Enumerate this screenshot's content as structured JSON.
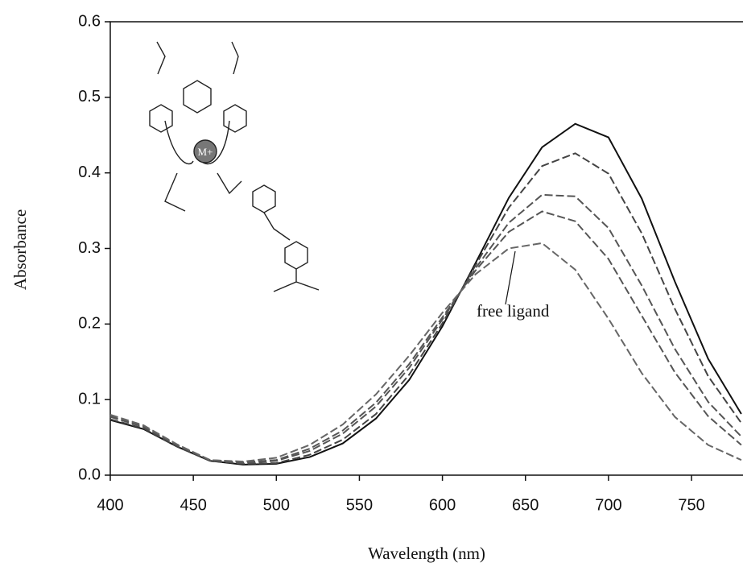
{
  "chart_data": {
    "type": "line",
    "xlabel": "Wavelength (nm)",
    "ylabel": "Absorbance",
    "annotation": "free ligand",
    "structure_label": "M+",
    "x": [
      400,
      420,
      440,
      460,
      480,
      500,
      520,
      540,
      560,
      580,
      600,
      620,
      640,
      660,
      680,
      700,
      720,
      740,
      760,
      780
    ],
    "series": [
      {
        "color": "#111111",
        "dash": false,
        "values": [
          0.073,
          0.061,
          0.038,
          0.019,
          0.014,
          0.015,
          0.024,
          0.042,
          0.075,
          0.126,
          0.197,
          0.281,
          0.367,
          0.434,
          0.465,
          0.447,
          0.366,
          0.256,
          0.154,
          0.081
        ]
      },
      {
        "color": "#444444",
        "dash": true,
        "values": [
          0.074,
          0.062,
          0.038,
          0.019,
          0.015,
          0.016,
          0.027,
          0.047,
          0.081,
          0.133,
          0.201,
          0.278,
          0.354,
          0.409,
          0.426,
          0.399,
          0.32,
          0.22,
          0.131,
          0.069
        ]
      },
      {
        "color": "#555555",
        "dash": true,
        "values": [
          0.077,
          0.064,
          0.04,
          0.02,
          0.016,
          0.019,
          0.032,
          0.055,
          0.091,
          0.142,
          0.206,
          0.274,
          0.334,
          0.371,
          0.369,
          0.327,
          0.251,
          0.167,
          0.097,
          0.051
        ]
      },
      {
        "color": "#555555",
        "dash": true,
        "values": [
          0.078,
          0.064,
          0.04,
          0.02,
          0.017,
          0.02,
          0.035,
          0.059,
          0.096,
          0.147,
          0.209,
          0.271,
          0.322,
          0.349,
          0.336,
          0.286,
          0.211,
          0.136,
          0.078,
          0.04
        ]
      },
      {
        "color": "#666666",
        "dash": true,
        "values": [
          0.08,
          0.066,
          0.041,
          0.02,
          0.018,
          0.023,
          0.04,
          0.067,
          0.107,
          0.158,
          0.215,
          0.266,
          0.3,
          0.307,
          0.272,
          0.207,
          0.135,
          0.077,
          0.04,
          0.02
        ]
      }
    ],
    "xlim": [
      400,
      781
    ],
    "ylim": [
      0,
      0.6
    ],
    "xticks": [
      400,
      450,
      500,
      550,
      600,
      650,
      700,
      750
    ],
    "yticks": [
      {
        "value": 0,
        "label": "0.0"
      },
      0.1,
      0.2,
      0.3,
      0.4,
      0.5,
      0.6
    ]
  }
}
